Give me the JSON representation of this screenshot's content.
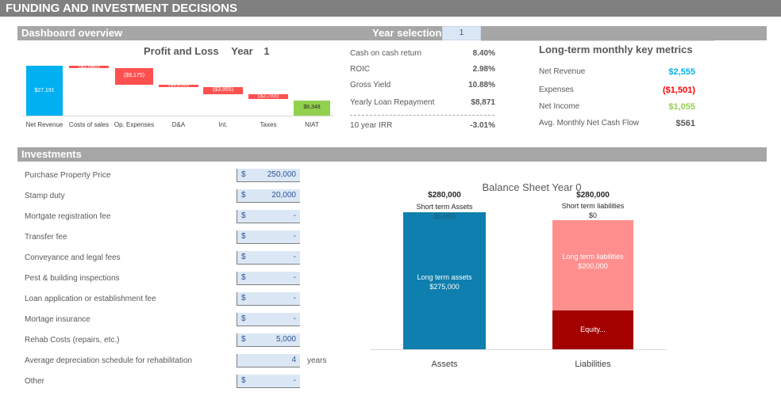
{
  "title": "FUNDING AND INVESTMENT DECISIONS",
  "dashboard": {
    "header": "Dashboard overview",
    "year_selection_label": "Year selection",
    "year_selection_value": "1"
  },
  "pl_chart": {
    "title": "Profit and Loss",
    "year_label": "Year",
    "year_value": "1",
    "colors": {
      "total": "#00b0f0",
      "negative": "#ff5050",
      "result": "#92d050"
    }
  },
  "chart_data": {
    "type": "waterfall",
    "title": "Profit and Loss   Year   1",
    "categories": [
      "Net Revenue",
      "Costs of sales",
      "Op. Expenses",
      "D&A",
      "Int.",
      "Taxes",
      "NIAT"
    ],
    "values": [
      27191,
      -1080,
      -9175,
      -1256,
      -3955,
      -2783,
      8348
    ],
    "labels": [
      "$27,191",
      "($1,080)",
      "($9,175)",
      "($1,256)",
      "($3,955)",
      "($2,783)",
      "$8,348"
    ]
  },
  "metrics": [
    {
      "label": "Cash on cash return",
      "value": "8.40%"
    },
    {
      "label": "ROIC",
      "value": "2.98%"
    },
    {
      "label": "Gross Yield",
      "value": "10.88%"
    },
    {
      "label": "Yearly Loan Repayment",
      "value": "$8,871"
    },
    {
      "label": "10 year IRR",
      "value": "-3.01%"
    }
  ],
  "long_term": {
    "title": "Long-term monthly key metrics",
    "items": [
      {
        "label": "Net Revenue",
        "value": "$2,555",
        "color": "#00b0f0"
      },
      {
        "label": "Expenses",
        "value": "($1,501)",
        "color": "#ff0000"
      },
      {
        "label": "Net Income",
        "value": "$1,055",
        "color": "#92d050"
      },
      {
        "label": "Avg. Monthly Net Cash Flow",
        "value": "$561",
        "color": "#595959"
      }
    ]
  },
  "investments": {
    "header": "Investments",
    "rows": [
      {
        "label": "Purchase Property Price",
        "currency": "$",
        "value": "250,000"
      },
      {
        "label": "Stamp duty",
        "currency": "$",
        "value": "20,000"
      },
      {
        "label": "Mortgate registration fee",
        "currency": "$",
        "value": "-"
      },
      {
        "label": "Transfer fee",
        "currency": "$",
        "value": "-"
      },
      {
        "label": "Conveyance and legal fees",
        "currency": "$",
        "value": "-"
      },
      {
        "label": "Pest & building inspections",
        "currency": "$",
        "value": "-"
      },
      {
        "label": "Loan application or establishment fee",
        "currency": "$",
        "value": "-"
      },
      {
        "label": "Mortage insurance",
        "currency": "$",
        "value": "-"
      },
      {
        "label": "Rehab Costs (repairs, etc.)",
        "currency": "$",
        "value": "5,000"
      },
      {
        "label": "Average depreciation schedule for rehabilitation",
        "currency": "",
        "value": "4",
        "unit": "years"
      },
      {
        "label": "Other",
        "currency": "$",
        "value": "-"
      }
    ]
  },
  "balance_sheet": {
    "title": "Balance Sheet Year 0",
    "assets": {
      "category": "Assets",
      "total": "$280,000",
      "short_label": "Short term Assets",
      "short_value": "$5,000",
      "long_label": "Long term assets",
      "long_value": "$275,000"
    },
    "liabilities": {
      "category": "Liabilities",
      "total": "$280,000",
      "short_label": "Short term liabilities",
      "short_value": "$0",
      "long_label": "Long term liabilities",
      "long_value": "$200,000",
      "equity_label": "Equity..."
    },
    "colors": {
      "assets": "#0e7fae",
      "long_liab": "#ff8f8f",
      "equity": "#a30000"
    }
  }
}
